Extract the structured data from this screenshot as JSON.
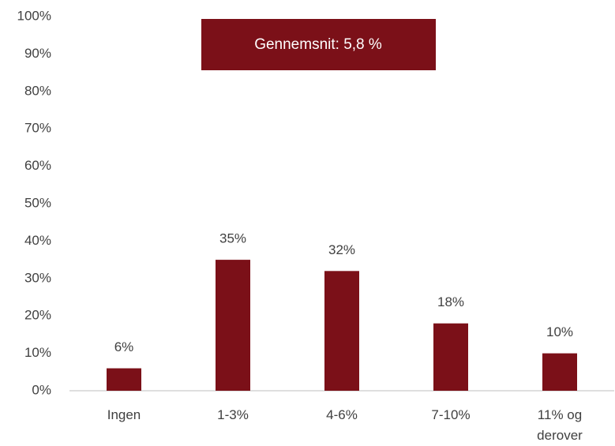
{
  "chart_data": {
    "type": "bar",
    "annotation": "Gennemsnit: 5,8 %",
    "categories": [
      "Ingen",
      "1-3%",
      "4-6%",
      "7-10%",
      "11% og derover"
    ],
    "values": [
      6,
      35,
      32,
      18,
      10
    ],
    "value_labels": [
      "6%",
      "35%",
      "32%",
      "18%",
      "10%"
    ],
    "color": "#7b1018",
    "ylim": [
      0,
      100
    ],
    "yticks": [
      {
        "value": 0,
        "label": "0%"
      },
      {
        "value": 10,
        "label": "10%"
      },
      {
        "value": 20,
        "label": "20%"
      },
      {
        "value": 30,
        "label": "30%"
      },
      {
        "value": 40,
        "label": "40%"
      },
      {
        "value": 50,
        "label": "50%"
      },
      {
        "value": 60,
        "label": "60%"
      },
      {
        "value": 70,
        "label": "70%"
      },
      {
        "value": 80,
        "label": "80%"
      },
      {
        "value": 90,
        "label": "90%"
      },
      {
        "value": 100,
        "label": "100%"
      }
    ],
    "grid": false
  }
}
